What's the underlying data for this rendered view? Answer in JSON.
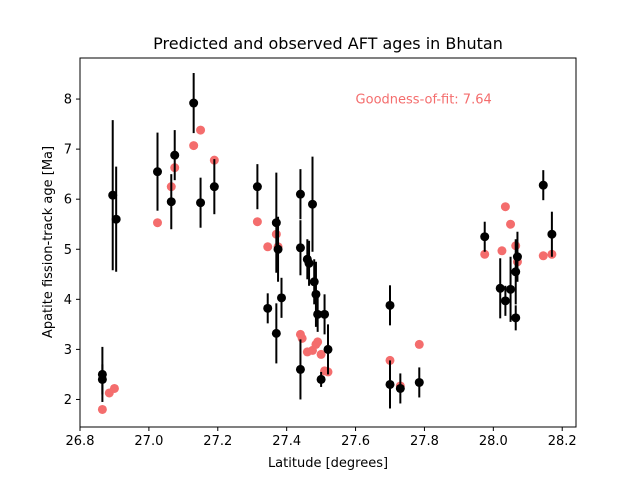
{
  "chart_data": {
    "type": "scatter",
    "title": "Predicted and observed AFT ages in Bhutan",
    "xlabel": "Latitude [degrees]",
    "ylabel": "Apatite fission-track age [Ma]",
    "xlim": [
      26.8,
      28.24
    ],
    "ylim": [
      1.45,
      8.82
    ],
    "xticks": [
      "26.8",
      "27.0",
      "27.2",
      "27.4",
      "27.6",
      "27.8",
      "28.0",
      "28.2"
    ],
    "yticks": [
      "2",
      "3",
      "4",
      "5",
      "6",
      "7",
      "8"
    ],
    "grid": false,
    "annotation": {
      "text": "Goodness-of-fit: 7.64",
      "x": 27.6,
      "y": 8.0,
      "color": "#f46d6d"
    },
    "series": [
      {
        "role": "predicted",
        "color": "#f46d6d",
        "points": [
          [
            26.865,
            1.8
          ],
          [
            26.885,
            2.13
          ],
          [
            26.9,
            2.22
          ],
          [
            27.025,
            5.53
          ],
          [
            27.065,
            6.25
          ],
          [
            27.075,
            6.63
          ],
          [
            27.13,
            7.07
          ],
          [
            27.15,
            7.38
          ],
          [
            27.19,
            6.78
          ],
          [
            27.315,
            5.55
          ],
          [
            27.345,
            5.05
          ],
          [
            27.37,
            5.3
          ],
          [
            27.375,
            5.05
          ],
          [
            27.44,
            3.3
          ],
          [
            27.445,
            3.22
          ],
          [
            27.46,
            2.95
          ],
          [
            27.475,
            2.98
          ],
          [
            27.485,
            3.1
          ],
          [
            27.49,
            3.15
          ],
          [
            27.5,
            2.9
          ],
          [
            27.51,
            2.57
          ],
          [
            27.52,
            2.55
          ],
          [
            27.7,
            2.78
          ],
          [
            27.73,
            2.27
          ],
          [
            27.785,
            3.1
          ],
          [
            27.975,
            4.9
          ],
          [
            28.025,
            4.97
          ],
          [
            28.035,
            5.85
          ],
          [
            28.05,
            5.5
          ],
          [
            28.065,
            5.07
          ],
          [
            28.07,
            4.75
          ],
          [
            28.145,
            4.87
          ],
          [
            28.17,
            4.9
          ]
        ]
      },
      {
        "role": "observed",
        "color": "#000000",
        "points": [
          [
            26.865,
            2.5,
            0.55
          ],
          [
            26.865,
            2.4,
            0.3
          ],
          [
            26.895,
            6.08,
            1.5
          ],
          [
            26.905,
            5.6,
            1.05
          ],
          [
            27.025,
            6.55,
            0.78
          ],
          [
            27.065,
            5.95,
            0.55
          ],
          [
            27.075,
            6.88,
            0.5
          ],
          [
            27.13,
            7.92,
            0.6
          ],
          [
            27.15,
            5.93,
            0.5
          ],
          [
            27.19,
            6.25,
            0.55
          ],
          [
            27.315,
            6.25,
            0.45
          ],
          [
            27.345,
            3.82,
            0.3
          ],
          [
            27.37,
            5.53,
            1.0
          ],
          [
            27.37,
            3.32,
            0.6
          ],
          [
            27.375,
            5.0,
            0.65
          ],
          [
            27.385,
            4.03,
            0.4
          ],
          [
            27.44,
            6.1,
            0.5
          ],
          [
            27.44,
            5.03,
            0.55
          ],
          [
            27.44,
            2.6,
            0.6
          ],
          [
            27.46,
            4.8,
            0.4
          ],
          [
            27.465,
            4.72,
            0.45
          ],
          [
            27.475,
            5.9,
            0.95
          ],
          [
            27.48,
            4.35,
            0.45
          ],
          [
            27.485,
            4.1,
            0.65
          ],
          [
            27.49,
            3.7,
            0.35
          ],
          [
            27.5,
            2.4,
            0.15
          ],
          [
            27.51,
            3.7,
            0.4
          ],
          [
            27.52,
            3.0,
            0.5
          ],
          [
            27.7,
            2.3,
            0.48
          ],
          [
            27.7,
            3.88,
            0.4
          ],
          [
            27.73,
            2.22,
            0.3
          ],
          [
            27.785,
            2.34,
            0.3
          ],
          [
            27.975,
            5.25,
            0.3
          ],
          [
            28.02,
            4.22,
            0.6
          ],
          [
            28.035,
            3.97,
            0.3
          ],
          [
            28.05,
            4.2,
            0.65
          ],
          [
            28.065,
            4.55,
            0.65
          ],
          [
            28.07,
            4.85,
            0.5
          ],
          [
            28.065,
            3.63,
            0.25
          ],
          [
            28.145,
            6.28,
            0.3
          ],
          [
            28.17,
            5.3,
            0.45
          ]
        ]
      }
    ]
  }
}
